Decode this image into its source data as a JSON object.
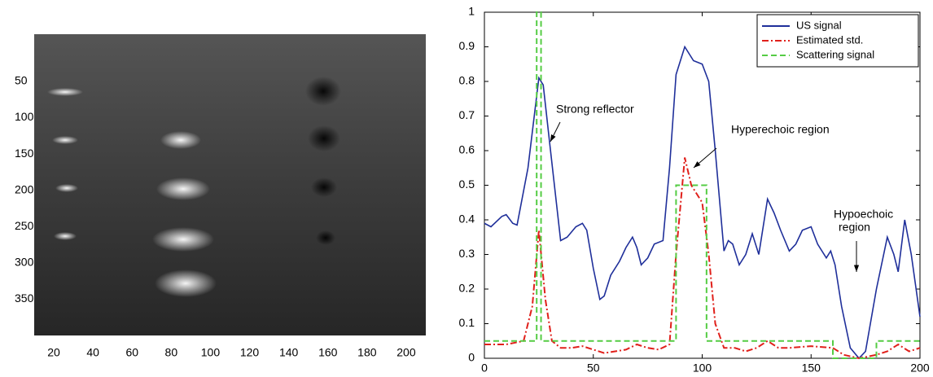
{
  "chart_data": [
    {
      "type": "image",
      "xlim": [
        10,
        210
      ],
      "ylim": [
        -15,
        400
      ],
      "xticks": [
        20,
        40,
        60,
        80,
        100,
        120,
        140,
        160,
        180,
        200
      ],
      "yticks": [
        50,
        100,
        150,
        200,
        250,
        300,
        350
      ]
    },
    {
      "type": "line",
      "xlim": [
        0,
        200
      ],
      "ylim": [
        0,
        1
      ],
      "xticks": [
        0,
        50,
        100,
        150,
        200
      ],
      "yticks": [
        0,
        0.1,
        0.2,
        0.3,
        0.4,
        0.5,
        0.6,
        0.7,
        0.8,
        0.9,
        1
      ],
      "legend": "upper right",
      "series": [
        {
          "name": "US signal",
          "color": "#1f2f9a",
          "style": "solid",
          "x": [
            0,
            3,
            8,
            10,
            13,
            15,
            20,
            25,
            27,
            30,
            35,
            38,
            42,
            45,
            47,
            50,
            53,
            55,
            58,
            62,
            65,
            68,
            70,
            72,
            75,
            78,
            82,
            85,
            88,
            92,
            96,
            100,
            103,
            106,
            110,
            112,
            114,
            117,
            120,
            123,
            126,
            130,
            133,
            136,
            140,
            143,
            146,
            150,
            153,
            157,
            159,
            161,
            164,
            168,
            172,
            175,
            180,
            185,
            188,
            190,
            193,
            196,
            200
          ],
          "values": [
            0.39,
            0.38,
            0.41,
            0.415,
            0.39,
            0.385,
            0.55,
            0.81,
            0.79,
            0.62,
            0.34,
            0.35,
            0.38,
            0.39,
            0.37,
            0.26,
            0.17,
            0.18,
            0.24,
            0.28,
            0.32,
            0.35,
            0.32,
            0.27,
            0.29,
            0.33,
            0.34,
            0.55,
            0.82,
            0.9,
            0.86,
            0.85,
            0.8,
            0.6,
            0.31,
            0.34,
            0.33,
            0.27,
            0.3,
            0.36,
            0.3,
            0.46,
            0.42,
            0.37,
            0.31,
            0.33,
            0.37,
            0.38,
            0.33,
            0.29,
            0.31,
            0.27,
            0.15,
            0.03,
            0.0,
            0.02,
            0.2,
            0.35,
            0.3,
            0.25,
            0.4,
            0.3,
            0.12
          ]
        },
        {
          "name": "Estimated std.",
          "color": "#e0201b",
          "style": "dashdot",
          "x": [
            0,
            10,
            18,
            22,
            25,
            28,
            31,
            35,
            40,
            45,
            50,
            55,
            60,
            65,
            70,
            75,
            80,
            85,
            88,
            92,
            95,
            98,
            100,
            103,
            106,
            110,
            115,
            120,
            125,
            130,
            135,
            140,
            150,
            160,
            165,
            172,
            180,
            185,
            190,
            195,
            200
          ],
          "values": [
            0.04,
            0.04,
            0.05,
            0.15,
            0.37,
            0.17,
            0.05,
            0.03,
            0.03,
            0.035,
            0.025,
            0.015,
            0.02,
            0.025,
            0.04,
            0.03,
            0.025,
            0.04,
            0.3,
            0.58,
            0.5,
            0.47,
            0.45,
            0.3,
            0.1,
            0.03,
            0.03,
            0.02,
            0.03,
            0.05,
            0.03,
            0.03,
            0.035,
            0.03,
            0.01,
            0.0,
            0.01,
            0.02,
            0.04,
            0.02,
            0.03
          ]
        },
        {
          "name": "Scattering signal",
          "color": "#55cc44",
          "style": "dashed",
          "x": [
            0,
            24,
            24,
            26,
            26,
            88,
            88,
            102,
            102,
            160,
            160,
            180,
            180,
            200
          ],
          "values": [
            0.05,
            0.05,
            1,
            1,
            0.05,
            0.05,
            0.5,
            0.5,
            0.05,
            0.05,
            0,
            0,
            0.05,
            0.05
          ]
        }
      ],
      "annotations": [
        "Strong reflector",
        "Hyperechoic region",
        "Hypoechoic",
        "region"
      ]
    }
  ]
}
